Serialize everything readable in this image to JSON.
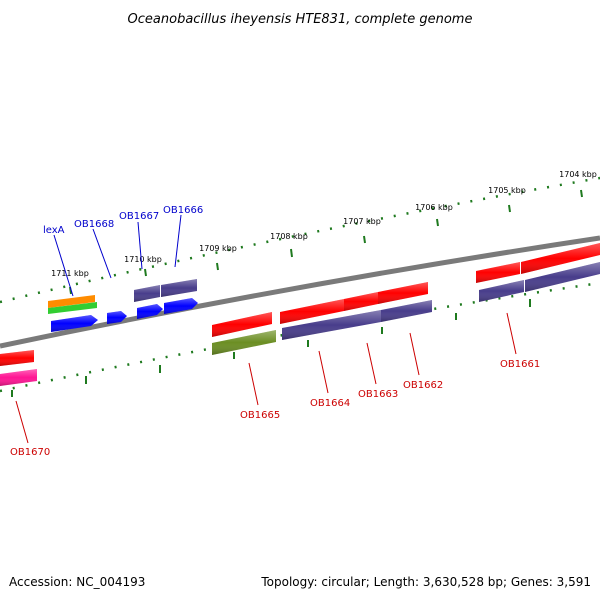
{
  "title": "Oceanobacillus iheyensis HTE831, complete genome",
  "footer": {
    "accession": "Accession: NC_004193",
    "summary": "Topology: circular; Length: 3,630,528 bp; Genes: 3,591"
  },
  "ticks": [
    "1711 kbp",
    "1710 kbp",
    "1709 kbp",
    "1708 kbp",
    "1707 kbp",
    "1706 kbp",
    "1705 kbp",
    "1704 kbp"
  ],
  "upper_genes": [
    "lexA",
    "OB1668",
    "OB1667",
    "OB1666"
  ],
  "lower_genes": [
    "OB1670",
    "OB1665",
    "OB1664",
    "OB1663",
    "OB1662",
    "OB1661"
  ],
  "colors": {
    "backbone": "#808080",
    "tick_marks": "#1f7a1f",
    "upper_label": "#0000cc",
    "lower_label": "#cc0000",
    "red": "#ff0000",
    "blue": "#0000ff",
    "slate": "#483d8b",
    "olive": "#6b8e23",
    "orange": "#ff8c00",
    "green": "#32cd32",
    "pink": "#ff1493"
  }
}
